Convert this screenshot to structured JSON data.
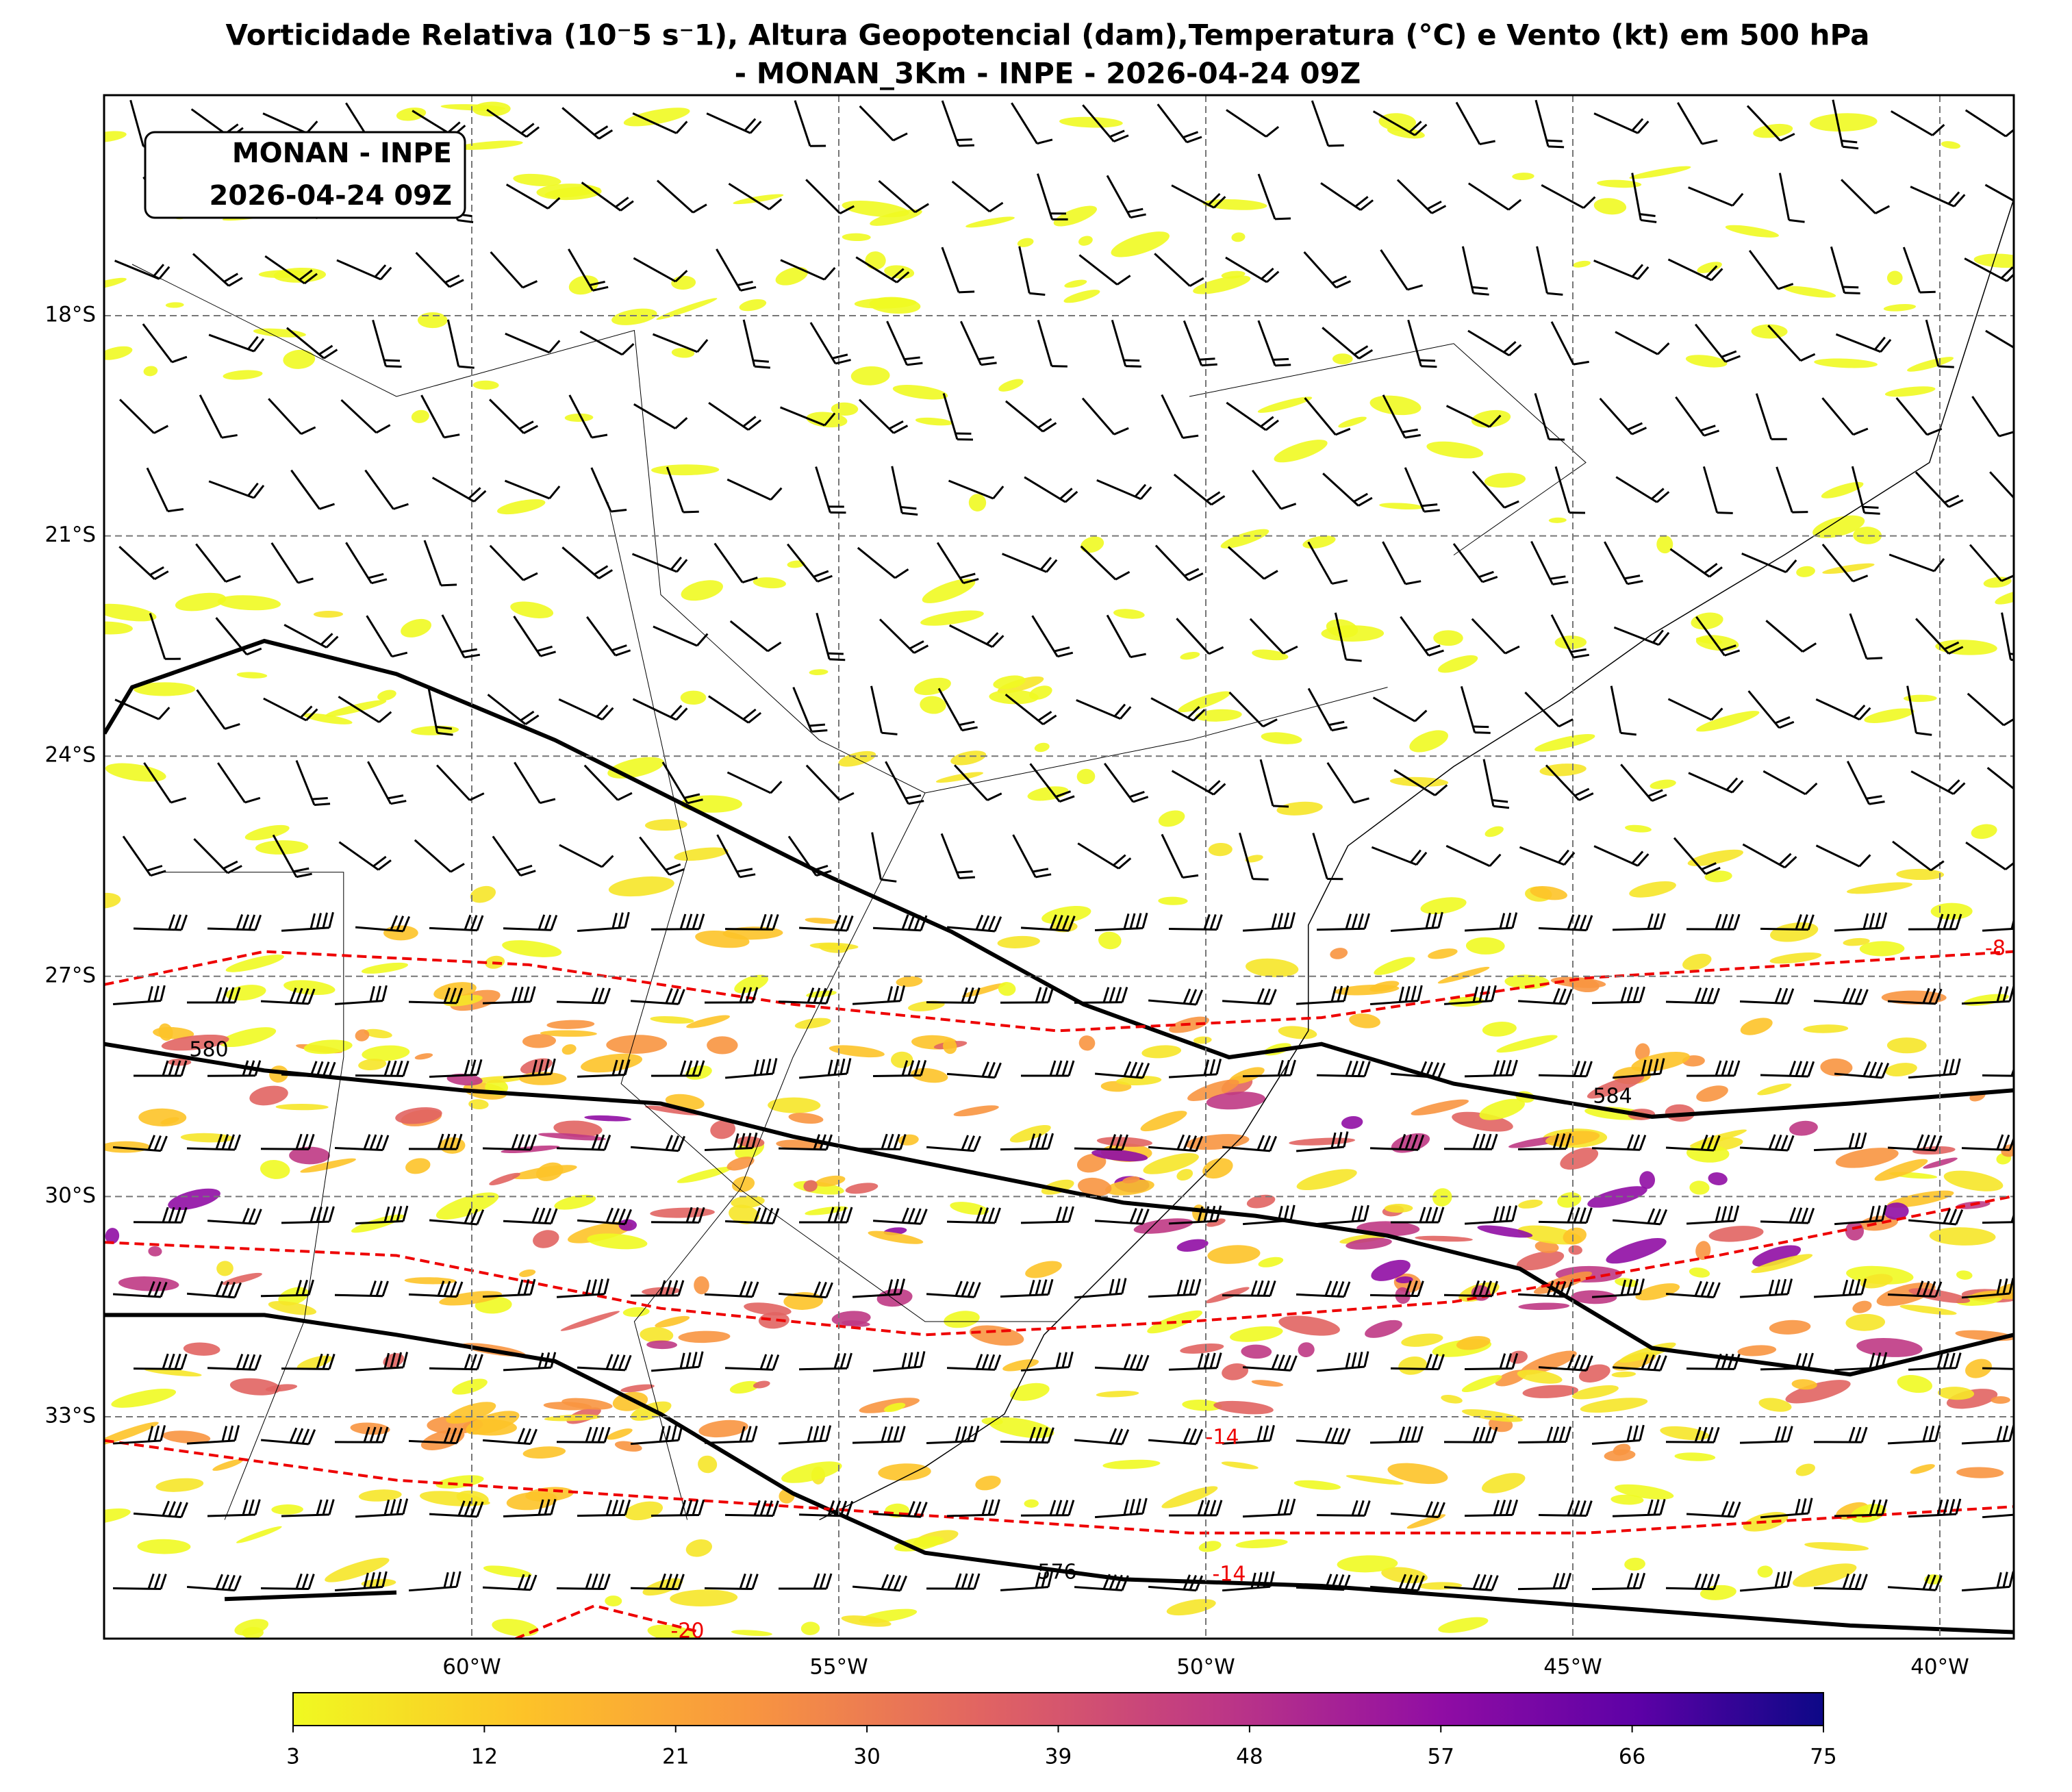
{
  "header": {
    "title_line1": "Vorticidade Relativa (10⁻5 s⁻1), Altura Geopotencial (dam),Temperatura (°C) e Vento (kt) em 500 hPa",
    "title_line2": "- MONAN_3Km - INPE - 2026-04-24 09Z"
  },
  "label_box": {
    "line1": "MONAN - INPE",
    "line2": "2026-04-24 09Z"
  },
  "map": {
    "lat_labels": [
      "18°S",
      "21°S",
      "24°S",
      "27°S",
      "30°S",
      "33°S"
    ],
    "lon_labels": [
      "60°W",
      "55°W",
      "50°W",
      "45°W",
      "40°W"
    ],
    "contour_labels": [
      "580",
      "584",
      "576",
      "-8",
      "-14",
      "-14",
      "-20"
    ]
  },
  "colorbar": {
    "ticks": [
      3,
      12,
      21,
      30,
      39,
      48,
      57,
      66,
      75
    ]
  }
}
